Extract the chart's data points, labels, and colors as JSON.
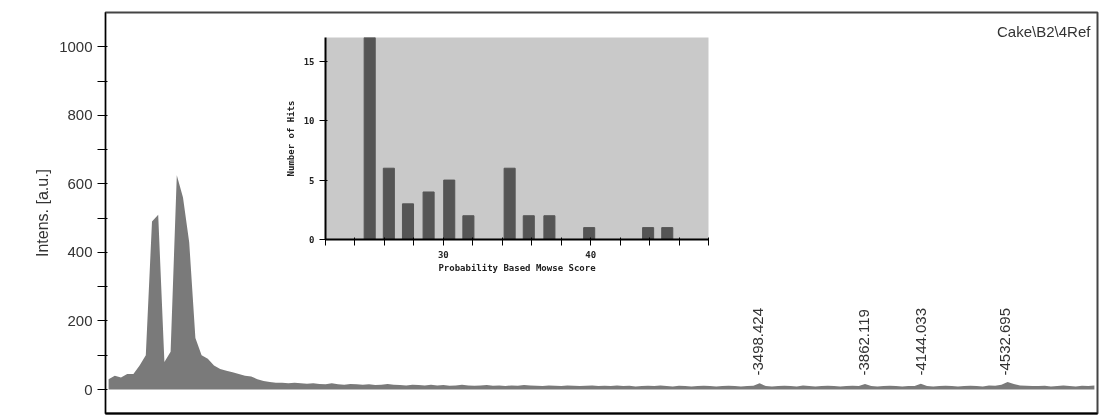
{
  "chart_data": [
    {
      "type": "area",
      "title": "Cake\\B2\\4Ref",
      "ylabel": "Intens. [a.u.]",
      "color": "#7a7a7a",
      "categories": [
        null,
        null,
        null,
        null,
        null,
        null,
        null,
        null,
        null,
        null,
        null,
        null,
        null,
        null,
        null,
        null,
        null,
        null,
        null,
        null,
        null,
        null,
        null,
        null,
        null,
        null,
        null,
        null,
        null,
        null,
        null,
        null,
        null,
        null,
        null,
        null,
        null,
        null,
        null,
        null,
        null,
        null,
        null,
        null,
        null,
        null,
        null,
        null,
        null,
        null,
        null,
        null,
        null,
        null,
        null,
        null,
        null,
        null,
        null,
        null,
        null,
        null,
        null,
        null,
        null,
        null,
        null,
        null,
        null,
        null,
        null,
        null,
        null,
        null,
        null,
        null,
        null,
        null,
        null,
        null,
        null,
        null,
        null,
        null,
        null,
        null,
        null,
        null,
        null,
        null,
        null,
        null,
        null,
        null,
        null,
        null,
        null,
        null,
        null,
        null,
        null,
        null,
        null,
        null,
        null,
        null,
        null,
        null,
        null,
        null,
        null,
        null,
        null,
        null,
        null,
        null,
        null,
        null,
        null,
        null,
        null,
        null,
        null,
        null,
        null,
        null,
        null,
        null,
        null,
        null,
        null,
        null,
        null,
        null,
        null,
        null,
        null,
        null,
        null,
        null,
        null,
        null,
        null,
        null,
        null,
        null,
        null,
        null,
        null,
        null,
        null,
        null,
        null,
        null,
        null,
        null,
        null,
        null,
        null,
        null
      ],
      "values": [
        30,
        40,
        35,
        45,
        45,
        70,
        100,
        490,
        510,
        80,
        110,
        625,
        560,
        430,
        150,
        100,
        90,
        70,
        60,
        55,
        50,
        45,
        40,
        38,
        30,
        25,
        22,
        20,
        20,
        18,
        20,
        18,
        17,
        18,
        16,
        15,
        18,
        15,
        14,
        16,
        15,
        14,
        15,
        13,
        14,
        16,
        14,
        13,
        12,
        14,
        13,
        12,
        14,
        12,
        13,
        11,
        12,
        14,
        12,
        11,
        12,
        13,
        11,
        12,
        10,
        12,
        11,
        13,
        12,
        11,
        10,
        12,
        11,
        10,
        12,
        11,
        10,
        11,
        12,
        10,
        11,
        10,
        12,
        10,
        11,
        9,
        10,
        11,
        10,
        12,
        10,
        9,
        11,
        10,
        9,
        10,
        11,
        10,
        9,
        10,
        11,
        10,
        9,
        10,
        11,
        18,
        10,
        9,
        10,
        11,
        10,
        9,
        12,
        10,
        9,
        10,
        11,
        10,
        9,
        10,
        11,
        10,
        16,
        10,
        9,
        10,
        11,
        10,
        9,
        10,
        10,
        17,
        10,
        9,
        10,
        11,
        10,
        9,
        10,
        11,
        10,
        9,
        12,
        11,
        14,
        22,
        16,
        12,
        11,
        10,
        10,
        11,
        9,
        10,
        12,
        10,
        9,
        11,
        10,
        12
      ],
      "ylim": [
        -70,
        1100
      ],
      "yticks": [
        0,
        {
          "value": 100,
          "label": null
        },
        200,
        {
          "value": 300,
          "label": null
        },
        400,
        {
          "value": 500,
          "label": null
        },
        600,
        {
          "value": 700,
          "label": null
        },
        800,
        {
          "value": 900,
          "label": null
        },
        1000
      ],
      "tick_labels": "y",
      "annotations": [
        "-3498.424",
        "-3862.119",
        "-4144.033",
        "-4532.695"
      ]
    },
    {
      "type": "bar",
      "xlabel": "Probability Based Mowse Score",
      "ylabel": "Number of Hits",
      "color": "#555555",
      "x": [
        25,
        26.3,
        27.6,
        29,
        30.4,
        31.7,
        34.5,
        35.8,
        37.2,
        39.9,
        43.9,
        45.2
      ],
      "values": [
        17,
        6,
        3,
        4,
        5,
        2,
        6,
        2,
        2,
        1,
        1,
        1
      ],
      "xlim": [
        22,
        48
      ],
      "xticks": [
        {
          "value": 22,
          "label": null
        },
        {
          "value": 24,
          "label": null
        },
        {
          "value": 26,
          "label": null
        },
        {
          "value": 28,
          "label": null
        },
        30,
        {
          "value": 32,
          "label": null
        },
        {
          "value": 34,
          "label": null
        },
        {
          "value": 36,
          "label": null
        },
        {
          "value": 38,
          "label": null
        },
        40,
        {
          "value": 42,
          "label": null
        },
        {
          "value": 44,
          "label": null
        },
        {
          "value": 46,
          "label": null
        },
        {
          "value": 48,
          "label": null
        }
      ],
      "ylim": [
        0,
        17
      ],
      "yticks": [
        0,
        5,
        10,
        15
      ]
    }
  ]
}
